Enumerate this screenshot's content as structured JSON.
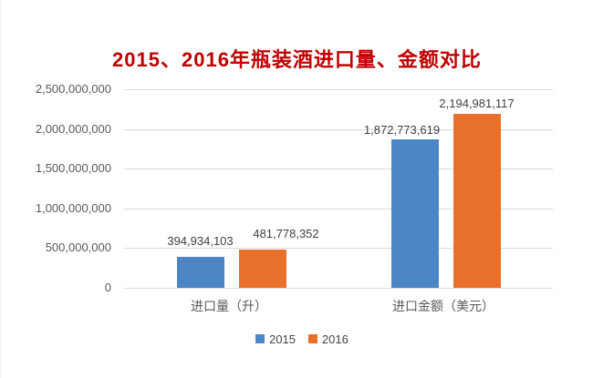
{
  "title": "2015、2016年瓶装酒进口量、金额对比",
  "chart_data": {
    "type": "bar",
    "title": "2015、2016年瓶装酒进口量、金额对比",
    "categories": [
      "进口量（升）",
      "进口金额（美元）"
    ],
    "series": [
      {
        "name": "2015",
        "color": "#4E86C5",
        "values": [
          394934103,
          1872773619
        ],
        "value_labels": [
          "394,934,103",
          "1,872,773,619"
        ]
      },
      {
        "name": "2016",
        "color": "#E8702B",
        "values": [
          481778352,
          2194981117
        ],
        "value_labels": [
          "481,778,352",
          "2,194,981,117"
        ]
      }
    ],
    "y_axis": {
      "min": 0,
      "max": 2500000000,
      "step": 500000000,
      "tick_labels": [
        "0",
        "500,000,000",
        "1,000,000,000",
        "1,500,000,000",
        "2,000,000,000",
        "2,500,000,000"
      ]
    },
    "grid": "horizontal-gridlines",
    "legend_position": "bottom",
    "xlabel": "",
    "ylabel": ""
  },
  "colors": {
    "title": "#C00000",
    "gridline": "#D9D9D9",
    "axis_text": "#595959",
    "data_label": "#404040",
    "legend_text": "#444444",
    "background": "#FFFFFF"
  }
}
